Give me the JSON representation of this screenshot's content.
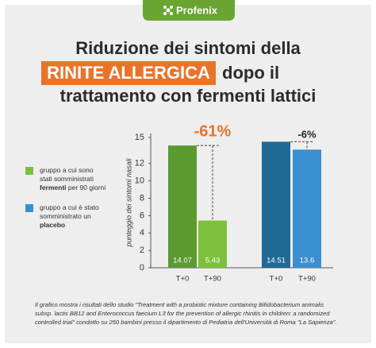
{
  "header": {
    "brand": "Profenix"
  },
  "chart_data": {
    "type": "bar",
    "title": {
      "line1": "Riduzione dei sintomi della",
      "highlight": "RINITE ALLERGICA",
      "line2_rest": "dopo il",
      "line3": "trattamento con fermenti lattici"
    },
    "y_label": "punteggio dei sintomi nasali",
    "categories": [
      "T+0",
      "T+90"
    ],
    "ylim": [
      0,
      15
    ],
    "yticks": [
      0,
      2,
      4,
      6,
      8,
      10,
      12,
      15
    ],
    "series": [
      {
        "name": [
          "gruppo a cui sono stati somministrati ",
          "fermenti",
          " per 90 giorni"
        ],
        "colors": [
          "#5a9a2e",
          "#7cc03b"
        ],
        "values": [
          14.07,
          5.43
        ],
        "change": "-61%",
        "change_color": "#e8742a"
      },
      {
        "name": [
          "gruppo a cui è stato somministrato un ",
          "placebo"
        ],
        "colors": [
          "#1f6a94",
          "#3a8fd1"
        ],
        "values": [
          14.51,
          13.6
        ],
        "change": "-6%",
        "change_color": "#222"
      }
    ],
    "footnote": [
      "Il grafico mostra i risultati dello studio \"Treatment with a probiotic mixture containing Bifidobacterium animalis",
      "subsp. lactis BB12 and Enterococcus faecium L3 for the prevention of allergic rhinitis in children: a randomized",
      "controlled trial\" condotto su 250 bambini presso il dipartimento di Pediatria dell'Università di Roma \"La Sapienza\"."
    ]
  }
}
